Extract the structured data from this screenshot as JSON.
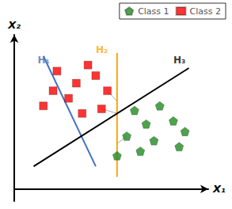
{
  "chart_data": {
    "type": "scatter",
    "xlabel": "X₁",
    "ylabel": "X₂",
    "xlim": [
      0,
      10
    ],
    "ylim": [
      -0.8,
      10.2
    ],
    "tick_labels": false,
    "grid": false,
    "legend": "upper right",
    "series": [
      {
        "name": "Class 1",
        "type": "scatter",
        "marker": "pentagon",
        "color": "#228B22",
        "values": [
          [
            6.2,
            5.2
          ],
          [
            7.5,
            5.5
          ],
          [
            6.8,
            4.3
          ],
          [
            8.2,
            4.5
          ],
          [
            8.8,
            3.8
          ],
          [
            5.8,
            3.5
          ],
          [
            7.2,
            3.2
          ],
          [
            6.5,
            2.5
          ],
          [
            8.5,
            2.8
          ],
          [
            5.3,
            2.2
          ]
        ]
      },
      {
        "name": "Class 2",
        "type": "scatter",
        "marker": "square",
        "color": "#ff0000",
        "values": [
          [
            2.2,
            7.8
          ],
          [
            3.8,
            8.2
          ],
          [
            2.0,
            6.5
          ],
          [
            3.2,
            7.0
          ],
          [
            1.5,
            5.5
          ],
          [
            2.8,
            6.0
          ],
          [
            4.2,
            7.5
          ],
          [
            4.8,
            6.5
          ],
          [
            4.5,
            5.3
          ],
          [
            3.5,
            5.0
          ]
        ]
      }
    ],
    "lines": [
      {
        "label": "H₁",
        "color": "#4472C4",
        "x": [
          1.5,
          4.2
        ],
        "y": [
          8.8,
          1.5
        ],
        "label_x": 1.2,
        "label_y": 8.5
      },
      {
        "label": "H₂",
        "color": "#FFA500",
        "x": [
          5.3,
          5.3
        ],
        "y": [
          9.0,
          0.8
        ],
        "label_x": 4.2,
        "label_y": 9.2
      },
      {
        "label": "H₃",
        "color": "#000000",
        "x": [
          1.0,
          9.0
        ],
        "y": [
          1.5,
          8.0
        ],
        "label_x": 8.2,
        "label_y": 8.5
      }
    ],
    "annotation_color": "#aaaaaa",
    "annotation_lines": [
      {
        "x": [
          4.8,
          5.3
        ],
        "y": [
          6.5,
          5.8
        ]
      },
      {
        "x": [
          4.5,
          5.3
        ],
        "y": [
          5.3,
          5.0
        ]
      },
      {
        "x": [
          5.8,
          5.3
        ],
        "y": [
          3.5,
          3.0
        ]
      }
    ]
  }
}
